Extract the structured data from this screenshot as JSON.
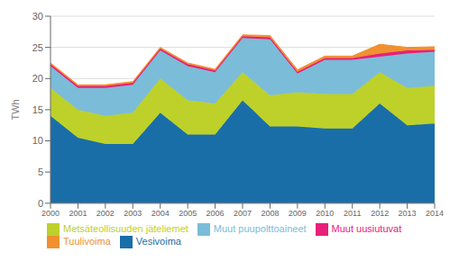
{
  "chart_data": {
    "type": "area",
    "stacked": true,
    "x": [
      2000,
      2001,
      2002,
      2003,
      2004,
      2005,
      2006,
      2007,
      2008,
      2009,
      2010,
      2011,
      2012,
      2013,
      2014
    ],
    "xlim": [
      2000,
      2014
    ],
    "xticks": [
      2000,
      2001,
      2002,
      2003,
      2004,
      2005,
      2006,
      2007,
      2008,
      2009,
      2010,
      2011,
      2012,
      2013,
      2014
    ],
    "ylabel": "TWh",
    "ylim": [
      0,
      30
    ],
    "yticks": [
      0,
      5,
      10,
      15,
      20,
      25,
      30
    ],
    "grid": true,
    "legend": "bottom",
    "series": [
      {
        "name": "Vesivoima",
        "color": "#1a6ea8",
        "values": [
          14.0,
          10.5,
          9.5,
          9.5,
          14.5,
          11.0,
          11.0,
          16.5,
          12.3,
          12.3,
          12.0,
          12.0,
          16.0,
          12.5,
          12.8
        ]
      },
      {
        "name": "Metsäteollisuuden jäteliemet",
        "color": "#bdd12a",
        "values": [
          4.5,
          4.5,
          4.5,
          5.0,
          5.5,
          5.5,
          5.0,
          4.5,
          5.0,
          5.5,
          5.5,
          5.5,
          5.0,
          6.0,
          6.0
        ]
      },
      {
        "name": "Muut puupolttoaineet",
        "color": "#7bbcd8",
        "values": [
          3.5,
          3.5,
          4.5,
          4.5,
          4.5,
          5.5,
          5.0,
          5.5,
          9.0,
          3.0,
          5.5,
          5.5,
          2.5,
          5.5,
          5.5
        ]
      },
      {
        "name": "Muut uusiutuvat",
        "color": "#e8207a",
        "values": [
          0.3,
          0.3,
          0.3,
          0.3,
          0.3,
          0.3,
          0.3,
          0.3,
          0.3,
          0.3,
          0.3,
          0.3,
          0.5,
          0.5,
          0.3
        ]
      },
      {
        "name": "Tuulivoima",
        "color": "#f09030",
        "values": [
          0.2,
          0.2,
          0.2,
          0.2,
          0.2,
          0.2,
          0.2,
          0.2,
          0.3,
          0.3,
          0.3,
          0.3,
          1.5,
          0.5,
          0.5
        ]
      }
    ]
  }
}
